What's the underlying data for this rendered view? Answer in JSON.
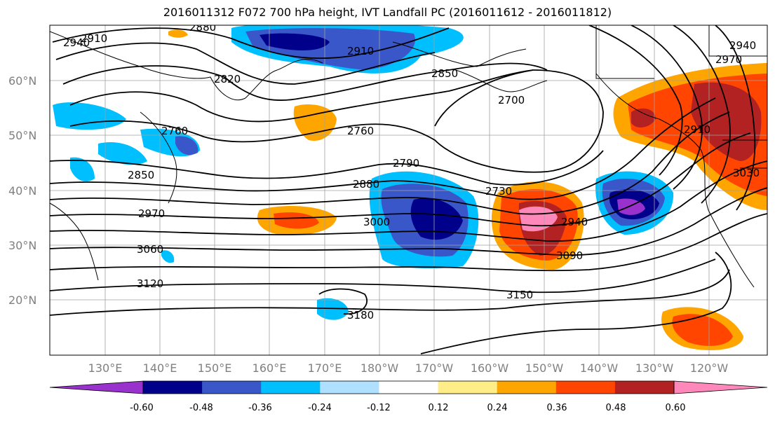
{
  "title": "2016011312 F072 700 hPa height, IVT Landfall PC (2016011612 - 2016011812)",
  "map": {
    "lat_ticks": [
      "60°N",
      "50°N",
      "40°N",
      "30°N",
      "20°N"
    ],
    "lon_ticks": [
      "130°E",
      "140°E",
      "150°E",
      "160°E",
      "170°E",
      "180°W",
      "170°W",
      "160°W",
      "150°W",
      "140°W",
      "130°W",
      "120°W"
    ],
    "contour_labels": [
      "2940",
      "2910",
      "2880",
      "2910",
      "2820",
      "2850",
      "2760",
      "2700",
      "2790",
      "2760",
      "2850",
      "2880",
      "2970",
      "2730",
      "3000",
      "2940",
      "3060",
      "3090",
      "3120",
      "3150",
      "3180",
      "2910",
      "2940",
      "2970",
      "3030"
    ]
  },
  "colorbar": {
    "tick_labels": [
      "-0.60",
      "-0.48",
      "-0.36",
      "-0.24",
      "-0.12",
      "0.12",
      "0.24",
      "0.36",
      "0.48",
      "0.60"
    ],
    "colors": [
      "#9932cc",
      "#00008b",
      "#3a57c9",
      "#00bfff",
      "#b0e0ff",
      "#ffffff",
      "#ffee88",
      "#ffa500",
      "#ff4500",
      "#b22222",
      "#ff88bb"
    ]
  }
}
